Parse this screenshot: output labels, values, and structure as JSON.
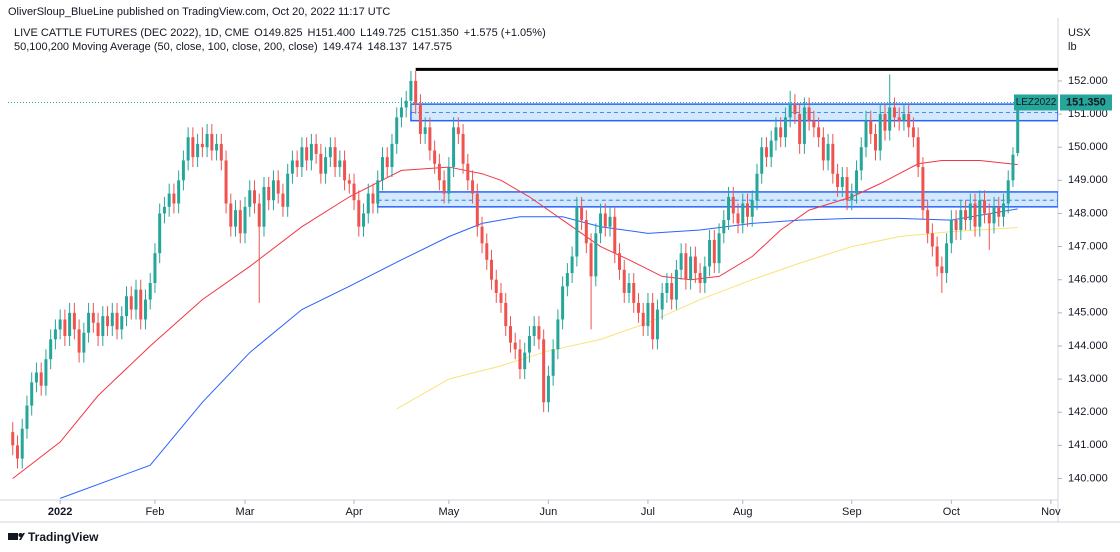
{
  "header": {
    "publisher": "OliverSloup_BlueLine published on TradingView.com, Oct 20, 2022 11:17 UTC"
  },
  "footer": {
    "brand": "TradingView"
  },
  "chart_data": {
    "type": "candlestick",
    "title": "LIVE CATTLE FUTURES (DEC 2022), 1D, CME",
    "ohlc_labels": [
      "O149.825",
      "H151.400",
      "L149.725",
      "C151.350",
      "+1.575 (+1.05%)"
    ],
    "up_color": "#26a69a",
    "down_color": "#ef5350",
    "open": [
      141.4,
      141.0,
      140.6,
      141.5,
      142.2,
      142.9,
      143.2,
      142.8,
      143.6,
      144.2,
      144.5,
      144.8,
      144.3,
      145.0,
      144.5,
      143.8,
      144.4,
      145.0,
      144.7,
      144.3,
      144.9,
      144.6,
      145.0,
      144.5,
      144.9,
      145.5,
      145.1,
      145.7,
      144.8,
      145.4,
      145.9,
      146.8,
      148.0,
      148.2,
      148.6,
      148.3,
      149.0,
      149.6,
      150.3,
      149.7,
      150.1,
      150.0,
      150.4,
      149.9,
      150.1,
      149.6,
      148.3,
      147.6,
      148.1,
      147.4,
      148.2,
      148.7,
      148.3,
      147.6,
      148.8,
      148.4,
      149.0,
      148.6,
      148.2,
      149.2,
      149.6,
      149.4,
      150.0,
      149.6,
      150.1,
      149.8,
      149.2,
      149.7,
      150.0,
      149.4,
      149.6,
      149.0,
      148.9,
      148.4,
      147.6,
      148.0,
      148.6,
      148.3,
      149.0,
      149.7,
      149.4,
      150.1,
      150.9,
      151.2,
      151.4,
      152.0,
      151.3,
      150.4,
      150.6,
      149.9,
      149.5,
      149.0,
      148.6,
      149.4,
      150.6,
      150.4,
      149.5,
      149.0,
      148.6,
      147.6,
      147.1,
      146.6,
      146.0,
      145.6,
      145.3,
      144.6,
      144.1,
      143.9,
      143.3,
      143.8,
      144.3,
      144.6,
      144.2,
      142.3,
      143.1,
      143.9,
      144.8,
      145.8,
      146.2,
      146.7,
      148.2,
      147.8,
      147.1,
      146.1,
      147.4,
      148.0,
      147.6,
      147.9,
      146.8,
      146.3,
      145.6,
      145.9,
      145.3,
      145.0,
      144.6,
      145.3,
      144.2,
      145.1,
      145.6,
      145.9,
      145.4,
      146.3,
      146.8,
      146.0,
      146.7,
      146.2,
      145.9,
      146.4,
      147.2,
      146.5,
      147.4,
      147.8,
      148.5,
      148.0,
      147.7,
      148.3,
      147.9,
      148.4,
      149.2,
      150.0,
      149.7,
      150.2,
      150.6,
      150.3,
      150.9,
      151.3,
      151.0,
      150.1,
      151.2,
      150.8,
      150.6,
      150.3,
      149.6,
      150.1,
      149.2,
      148.8,
      149.1,
      148.4,
      148.6,
      149.3,
      150.0,
      150.8,
      150.4,
      149.9,
      151.0,
      150.5,
      151.2,
      150.9,
      150.8,
      151.0,
      150.6,
      150.3,
      149.4,
      148.1,
      147.4,
      147.0,
      146.4,
      146.2,
      147.1,
      147.8,
      147.5,
      148.1,
      147.8,
      148.3,
      147.6,
      148.4,
      148.0,
      147.7,
      148.2,
      147.9,
      148.3,
      149.0,
      149.825
    ],
    "high": [
      141.7,
      141.3,
      141.8,
      142.5,
      143.2,
      143.5,
      143.5,
      143.9,
      144.5,
      144.8,
      145.1,
      145.1,
      145.3,
      145.3,
      144.8,
      144.7,
      145.3,
      145.3,
      145.0,
      145.2,
      145.2,
      145.3,
      145.3,
      145.2,
      145.8,
      145.8,
      146.0,
      146.0,
      145.7,
      146.2,
      147.1,
      148.3,
      148.5,
      148.9,
      148.9,
      149.3,
      149.9,
      150.6,
      150.6,
      150.4,
      150.6,
      150.7,
      150.7,
      150.4,
      150.4,
      149.9,
      148.6,
      148.4,
      148.4,
      148.5,
      149.0,
      149.0,
      148.6,
      149.1,
      149.1,
      149.3,
      149.3,
      148.9,
      149.5,
      149.9,
      149.9,
      150.3,
      150.3,
      150.4,
      150.4,
      150.1,
      150.0,
      150.3,
      150.3,
      149.9,
      149.9,
      149.2,
      149.2,
      148.7,
      148.3,
      148.9,
      148.9,
      149.3,
      150.0,
      150.0,
      150.4,
      151.2,
      151.5,
      151.7,
      152.3,
      152.3,
      151.6,
      150.9,
      150.9,
      150.2,
      149.8,
      149.3,
      149.7,
      150.9,
      150.9,
      150.7,
      149.8,
      149.3,
      148.9,
      147.9,
      147.4,
      146.9,
      146.3,
      145.9,
      145.6,
      144.9,
      144.4,
      144.2,
      144.1,
      144.6,
      144.9,
      144.9,
      144.5,
      143.4,
      144.2,
      145.1,
      146.1,
      146.5,
      147.0,
      148.5,
      148.5,
      148.1,
      147.4,
      147.7,
      148.3,
      148.3,
      148.2,
      148.2,
      147.1,
      146.6,
      146.2,
      146.2,
      145.6,
      145.3,
      145.6,
      145.6,
      145.4,
      145.9,
      146.2,
      146.2,
      146.6,
      147.1,
      147.1,
      147.0,
      147.0,
      146.5,
      146.7,
      147.5,
      147.5,
      147.7,
      148.1,
      148.8,
      148.8,
      148.3,
      148.6,
      148.6,
      148.7,
      149.5,
      150.3,
      150.3,
      150.5,
      150.9,
      150.9,
      151.2,
      151.7,
      151.6,
      151.3,
      151.5,
      151.5,
      151.1,
      150.9,
      150.6,
      150.4,
      150.4,
      149.5,
      149.4,
      149.4,
      148.9,
      149.6,
      150.3,
      151.1,
      151.1,
      150.7,
      151.3,
      151.3,
      152.2,
      151.5,
      151.2,
      151.3,
      151.3,
      150.9,
      150.6,
      149.7,
      148.4,
      147.7,
      147.3,
      146.7,
      147.4,
      148.1,
      148.1,
      148.4,
      148.4,
      148.6,
      148.6,
      148.7,
      148.7,
      148.3,
      148.5,
      148.5,
      148.6,
      149.3,
      150.0,
      151.4
    ],
    "low": [
      140.7,
      140.3,
      140.3,
      141.2,
      141.9,
      142.6,
      142.5,
      142.5,
      143.3,
      143.9,
      144.2,
      144.0,
      144.0,
      144.2,
      143.5,
      143.5,
      144.1,
      144.4,
      144.0,
      144.0,
      144.3,
      144.3,
      144.2,
      144.2,
      144.6,
      144.8,
      144.8,
      144.5,
      144.5,
      145.1,
      145.6,
      146.5,
      147.7,
      147.9,
      148.0,
      148.0,
      148.7,
      149.3,
      149.4,
      149.4,
      149.7,
      149.7,
      149.6,
      149.6,
      149.3,
      148.0,
      147.3,
      147.3,
      147.1,
      147.1,
      147.9,
      148.0,
      145.3,
      147.3,
      148.1,
      148.1,
      148.3,
      147.9,
      147.9,
      148.9,
      149.1,
      149.1,
      149.3,
      149.3,
      149.5,
      148.9,
      148.9,
      149.4,
      149.1,
      149.1,
      148.7,
      148.6,
      148.1,
      147.3,
      147.3,
      147.7,
      148.0,
      148.0,
      148.7,
      149.1,
      149.1,
      149.8,
      150.6,
      150.9,
      151.1,
      151.0,
      150.1,
      150.1,
      149.6,
      149.2,
      148.7,
      148.3,
      148.3,
      149.1,
      150.1,
      149.2,
      148.7,
      148.3,
      147.3,
      146.8,
      146.3,
      145.7,
      145.3,
      145.0,
      144.3,
      143.8,
      143.6,
      143.0,
      143.0,
      143.5,
      144.0,
      143.9,
      142.0,
      142.0,
      142.8,
      143.6,
      144.5,
      145.5,
      145.9,
      146.4,
      147.5,
      146.8,
      144.5,
      145.8,
      147.1,
      147.3,
      147.3,
      146.5,
      146.0,
      145.3,
      145.3,
      145.0,
      144.7,
      144.3,
      144.3,
      143.9,
      143.9,
      144.8,
      145.3,
      145.1,
      145.1,
      146.0,
      145.7,
      145.7,
      145.9,
      145.6,
      145.6,
      146.1,
      146.2,
      146.2,
      147.1,
      147.5,
      147.7,
      147.4,
      147.4,
      147.6,
      147.6,
      148.1,
      148.9,
      149.4,
      149.4,
      149.9,
      150.0,
      150.0,
      150.6,
      150.7,
      149.8,
      149.8,
      150.5,
      150.3,
      150.0,
      149.3,
      149.3,
      148.9,
      148.5,
      148.5,
      148.1,
      148.1,
      148.3,
      149.0,
      149.7,
      150.1,
      149.6,
      149.6,
      150.2,
      150.2,
      150.6,
      150.5,
      150.5,
      150.3,
      150.0,
      149.1,
      147.8,
      147.1,
      146.7,
      146.1,
      145.6,
      145.9,
      146.8,
      147.2,
      147.2,
      147.5,
      147.5,
      147.3,
      147.3,
      147.7,
      146.9,
      147.4,
      147.6,
      147.6,
      148.0,
      148.8,
      149.725
    ],
    "close": [
      141.0,
      140.6,
      141.5,
      142.2,
      142.9,
      143.2,
      142.8,
      143.6,
      144.2,
      144.5,
      144.8,
      144.3,
      145.0,
      144.5,
      143.8,
      144.4,
      145.0,
      144.7,
      144.3,
      144.9,
      144.6,
      145.0,
      144.5,
      144.9,
      145.5,
      145.1,
      145.7,
      144.8,
      145.4,
      145.9,
      146.8,
      148.0,
      148.2,
      148.6,
      148.3,
      149.0,
      149.6,
      150.3,
      149.7,
      150.1,
      150.0,
      150.4,
      149.9,
      150.1,
      149.6,
      148.3,
      147.6,
      148.1,
      147.4,
      148.2,
      148.7,
      148.3,
      147.6,
      148.8,
      148.4,
      149.0,
      148.6,
      148.2,
      149.2,
      149.6,
      149.4,
      150.0,
      149.6,
      150.1,
      149.8,
      149.2,
      149.7,
      150.0,
      149.4,
      149.6,
      149.0,
      148.9,
      148.4,
      147.6,
      148.0,
      148.6,
      148.3,
      149.0,
      149.7,
      149.4,
      150.1,
      150.9,
      151.2,
      151.4,
      152.0,
      151.3,
      150.4,
      150.6,
      149.9,
      149.5,
      149.0,
      148.6,
      149.4,
      150.6,
      150.4,
      149.5,
      149.0,
      148.6,
      147.6,
      147.1,
      146.6,
      146.0,
      145.6,
      145.3,
      144.6,
      144.1,
      143.9,
      143.3,
      143.8,
      144.3,
      144.6,
      144.2,
      142.3,
      143.1,
      143.9,
      144.8,
      145.8,
      146.2,
      146.7,
      148.2,
      147.8,
      147.1,
      146.1,
      147.4,
      148.0,
      147.6,
      147.9,
      146.8,
      146.3,
      145.6,
      145.9,
      145.3,
      145.0,
      144.6,
      145.3,
      144.2,
      145.1,
      145.6,
      145.9,
      145.4,
      146.3,
      146.8,
      146.0,
      146.7,
      146.2,
      145.9,
      146.4,
      147.2,
      146.5,
      147.4,
      147.8,
      148.5,
      148.0,
      147.7,
      148.3,
      147.9,
      148.4,
      149.2,
      150.0,
      149.7,
      150.2,
      150.6,
      150.3,
      150.9,
      151.3,
      151.0,
      150.1,
      151.2,
      150.8,
      150.6,
      150.3,
      149.6,
      150.1,
      149.2,
      148.8,
      149.1,
      148.4,
      148.6,
      149.3,
      150.0,
      150.8,
      150.4,
      149.9,
      151.0,
      150.5,
      151.2,
      150.9,
      150.8,
      151.0,
      150.6,
      150.3,
      149.4,
      148.1,
      147.4,
      147.0,
      146.4,
      146.2,
      147.1,
      147.8,
      147.5,
      148.1,
      147.8,
      148.3,
      147.6,
      148.4,
      148.0,
      147.7,
      148.2,
      147.9,
      148.3,
      149.0,
      149.775,
      151.35
    ],
    "indicator": {
      "name": "50,100,200 Moving Average (50, close, 100, close, 200, close)",
      "series": [
        {
          "color": "#f23645",
          "legend_value": "149.474",
          "x": [
            0,
            10,
            18,
            29,
            40,
            50,
            61,
            71,
            82,
            92,
            99,
            103,
            109,
            116,
            124,
            130,
            137,
            143,
            149,
            156,
            162,
            168,
            177,
            183,
            187,
            191,
            196,
            204,
            212
          ],
          "values": [
            140.0,
            141.1,
            142.5,
            144.0,
            145.4,
            146.4,
            147.6,
            148.5,
            149.3,
            149.4,
            149.2,
            149.0,
            148.5,
            147.8,
            147.0,
            146.6,
            146.1,
            146.0,
            146.1,
            146.7,
            147.5,
            148.1,
            148.5,
            148.9,
            149.2,
            149.5,
            149.6,
            149.6,
            149.474
          ]
        },
        {
          "color": "#2962ff",
          "legend_value": "148.137",
          "x": [
            10,
            29,
            40,
            50,
            61,
            71,
            82,
            92,
            99,
            107,
            116,
            124,
            134,
            145,
            156,
            166,
            177,
            187,
            198,
            212
          ],
          "values": [
            139.4,
            140.4,
            142.3,
            143.8,
            145.1,
            145.8,
            146.6,
            147.3,
            147.7,
            147.9,
            147.9,
            147.6,
            147.4,
            147.5,
            147.7,
            147.8,
            147.85,
            147.85,
            147.8,
            148.137
          ]
        },
        {
          "color": "#fbe27a",
          "legend_value": "147.575",
          "x": [
            81,
            92,
            103,
            113,
            124,
            134,
            145,
            156,
            166,
            177,
            187,
            198,
            212
          ],
          "values": [
            142.1,
            143.0,
            143.4,
            143.85,
            144.2,
            144.7,
            145.4,
            146.0,
            146.5,
            147.0,
            147.3,
            147.45,
            147.575
          ]
        }
      ]
    },
    "zones": [
      {
        "low": 150.8,
        "high": 151.3,
        "mid": 151.05,
        "from": 84
      },
      {
        "low": 148.2,
        "high": 148.65,
        "mid": 148.4,
        "from": 77
      }
    ],
    "resistance": {
      "value": 152.35,
      "from": 85
    },
    "last_price": {
      "symbol": "LEZ2022",
      "label": "151.350",
      "value": 151.35
    },
    "currency": "USX",
    "unit": "lb",
    "xlim": [
      -1,
      220.5
    ],
    "xticks": [
      {
        "value": 10,
        "label": "2022"
      },
      {
        "value": 30,
        "label": "Feb"
      },
      {
        "value": 49,
        "label": "Mar"
      },
      {
        "value": 72,
        "label": "Apr"
      },
      {
        "value": 92,
        "label": "May"
      },
      {
        "value": 113,
        "label": "Jun"
      },
      {
        "value": 134,
        "label": "Jul"
      },
      {
        "value": 154,
        "label": "Aug"
      },
      {
        "value": 177,
        "label": "Sep"
      },
      {
        "value": 198,
        "label": "Oct"
      },
      {
        "value": 219,
        "label": "Nov"
      }
    ],
    "ylim": [
      139.35,
      153.9
    ],
    "yticks": [
      {
        "value": 140,
        "label": "140.000"
      },
      {
        "value": 141,
        "label": "141.000"
      },
      {
        "value": 142,
        "label": "142.000"
      },
      {
        "value": 143,
        "label": "143.000"
      },
      {
        "value": 144,
        "label": "144.000"
      },
      {
        "value": 145,
        "label": "145.000"
      },
      {
        "value": 146,
        "label": "146.000"
      },
      {
        "value": 147,
        "label": "147.000"
      },
      {
        "value": 148,
        "label": "148.000"
      },
      {
        "value": 149,
        "label": "149.000"
      },
      {
        "value": 150,
        "label": "150.000"
      },
      {
        "value": 151,
        "label": "151.000"
      },
      {
        "value": 152,
        "label": "152.000"
      }
    ],
    "grid": false
  }
}
